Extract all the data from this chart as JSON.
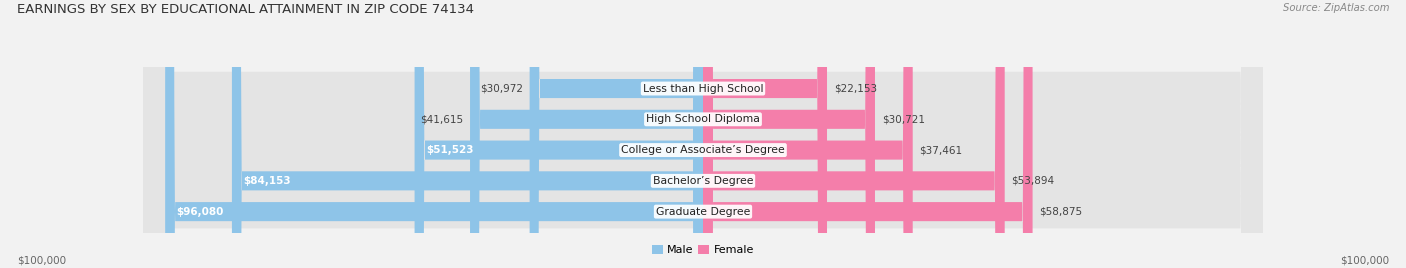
{
  "title": "EARNINGS BY SEX BY EDUCATIONAL ATTAINMENT IN ZIP CODE 74134",
  "source": "Source: ZipAtlas.com",
  "categories": [
    "Less than High School",
    "High School Diploma",
    "College or Associate’s Degree",
    "Bachelor’s Degree",
    "Graduate Degree"
  ],
  "male_values": [
    30972,
    41615,
    51523,
    84153,
    96080
  ],
  "female_values": [
    22153,
    30721,
    37461,
    53894,
    58875
  ],
  "male_color": "#8EC4E8",
  "female_color": "#F47EAA",
  "background_color": "#f2f2f2",
  "row_bg_color": "#e4e4e4",
  "max_value": 100000,
  "title_fontsize": 9.5,
  "label_fontsize": 7.8,
  "value_fontsize": 7.5,
  "axis_label": "$100,000",
  "legend_fontsize": 8.0
}
